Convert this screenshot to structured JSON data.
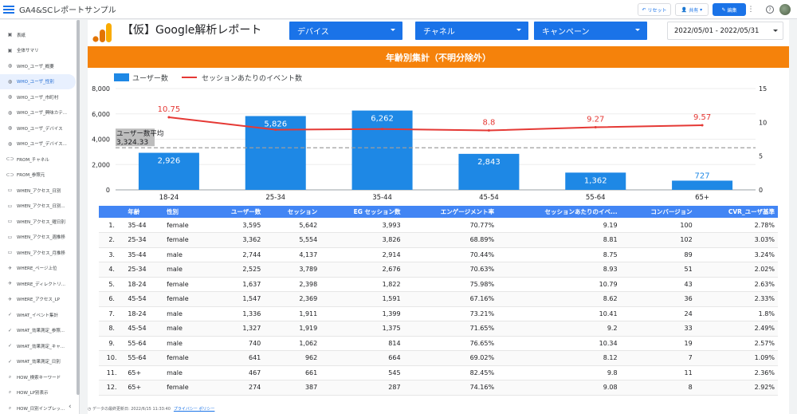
{
  "app": {
    "title": "GA4&SCレポートサンプル",
    "reset_label": "リセット",
    "share_label": "共有",
    "edit_label": "編集",
    "more_label": "⋮",
    "help_label": "?"
  },
  "sidebar": {
    "items": [
      {
        "label": "表紙",
        "icon": "page-icon"
      },
      {
        "label": "全体サマリ",
        "icon": "page-icon"
      },
      {
        "label": "WHO_ユーザ_概要",
        "icon": "globe-icon"
      },
      {
        "label": "WHO_ユーザ_性別",
        "icon": "globe-icon"
      },
      {
        "label": "WHO_ユーザ_市町村",
        "icon": "globe-icon"
      },
      {
        "label": "WHO_ユーザ_興味カテ...",
        "icon": "globe-icon"
      },
      {
        "label": "WHO_ユーザ_デバイス",
        "icon": "globe-icon"
      },
      {
        "label": "WHO_ユーザ_デバイス...",
        "icon": "globe-icon"
      },
      {
        "label": "FROM_チャネル",
        "icon": "link-icon"
      },
      {
        "label": "FROM_参照元",
        "icon": "link-icon"
      },
      {
        "label": "WHEN_アクセス_日別",
        "icon": "truck-icon"
      },
      {
        "label": "WHEN_アクセス_日別...",
        "icon": "truck-icon"
      },
      {
        "label": "WHEN_アクセス_曜日別",
        "icon": "truck-icon"
      },
      {
        "label": "WHEN_アクセス_週推移",
        "icon": "truck-icon"
      },
      {
        "label": "WHEN_アクセス_月推移",
        "icon": "truck-icon"
      },
      {
        "label": "WHERE_ページ上位",
        "icon": "plane-icon"
      },
      {
        "label": "WHERE_ディレクトリ...",
        "icon": "plane-icon"
      },
      {
        "label": "WHERE_アクセス_LP",
        "icon": "plane-icon"
      },
      {
        "label": "WHAT_イベント集計",
        "icon": "check-icon"
      },
      {
        "label": "WHAT_効果測定_参照...",
        "icon": "check-icon"
      },
      {
        "label": "WHAT_効果測定_キャ...",
        "icon": "check-icon"
      },
      {
        "label": "WHAT_効果測定_日別",
        "icon": "check-icon"
      },
      {
        "label": "HOW_検索キーワード",
        "icon": "search-icon"
      },
      {
        "label": "HOW_LP別表示",
        "icon": "search-icon"
      },
      {
        "label": "HOW_日別インプレッ...",
        "icon": "search-icon"
      }
    ],
    "active_index": 3,
    "collapse_label": "‹"
  },
  "header": {
    "report_title": "【仮】Google解析レポート",
    "filters": {
      "device": "デバイス",
      "channel": "チャネル",
      "campaign": "キャンペーン"
    },
    "date_range": "2022/05/01 - 2022/05/31"
  },
  "section": {
    "title": "年齢別集計（不明分除外）"
  },
  "chart_data": {
    "type": "bar+line",
    "categories": [
      "18-24",
      "25-34",
      "35-44",
      "45-54",
      "55-64",
      "65+"
    ],
    "series": [
      {
        "name": "ユーザー数",
        "kind": "bar",
        "axis": "left",
        "color": "#1e88e5",
        "values": [
          2926,
          5826,
          6262,
          2843,
          1362,
          727
        ],
        "labels": [
          "2,926",
          "5,826",
          "6,262",
          "2,843",
          "1,362",
          "727"
        ]
      },
      {
        "name": "セッションあたりのイベント数",
        "kind": "line",
        "axis": "right",
        "color": "#e53935",
        "values": [
          10.75,
          8.9,
          9.0,
          8.8,
          9.27,
          9.57
        ],
        "labels": [
          "10.75",
          "",
          "",
          "8.8",
          "9.27",
          "9.57"
        ]
      }
    ],
    "y_left": {
      "min": 0,
      "max": 8000,
      "ticks": [
        "0",
        "2,000",
        "4,000",
        "6,000",
        "8,000"
      ]
    },
    "y_right": {
      "min": 0,
      "max": 15,
      "ticks": [
        "0",
        "5",
        "10",
        "15"
      ]
    },
    "reference_line": {
      "label": "ユーザー数平均",
      "value": 3324.33,
      "value_label": "3,324.33"
    },
    "legend_position": "top-left"
  },
  "table": {
    "headers": [
      "",
      "年齢",
      "性別",
      "ユーザー数",
      "セッション",
      "EG セッション数",
      "エンゲージメント率",
      "セッションあたりのイベ...",
      "コンバージョン",
      "CVR_ユーザ基準"
    ],
    "rows": [
      [
        "1.",
        "35-44",
        "female",
        "3,595",
        "5,642",
        "3,993",
        "70.77%",
        "9.19",
        "100",
        "2.78%"
      ],
      [
        "2.",
        "25-34",
        "female",
        "3,362",
        "5,554",
        "3,826",
        "68.89%",
        "8.81",
        "102",
        "3.03%"
      ],
      [
        "3.",
        "35-44",
        "male",
        "2,744",
        "4,137",
        "2,914",
        "70.44%",
        "8.75",
        "89",
        "3.24%"
      ],
      [
        "4.",
        "25-34",
        "male",
        "2,525",
        "3,789",
        "2,676",
        "70.63%",
        "8.93",
        "51",
        "2.02%"
      ],
      [
        "5.",
        "18-24",
        "female",
        "1,637",
        "2,398",
        "1,822",
        "75.98%",
        "10.79",
        "43",
        "2.63%"
      ],
      [
        "6.",
        "45-54",
        "female",
        "1,547",
        "2,369",
        "1,591",
        "67.16%",
        "8.62",
        "36",
        "2.33%"
      ],
      [
        "7.",
        "18-24",
        "male",
        "1,336",
        "1,911",
        "1,399",
        "73.21%",
        "10.41",
        "24",
        "1.8%"
      ],
      [
        "8.",
        "45-54",
        "male",
        "1,327",
        "1,919",
        "1,375",
        "71.65%",
        "9.2",
        "33",
        "2.49%"
      ],
      [
        "9.",
        "55-64",
        "male",
        "740",
        "1,062",
        "814",
        "76.65%",
        "10.34",
        "19",
        "2.57%"
      ],
      [
        "10.",
        "55-64",
        "female",
        "641",
        "962",
        "664",
        "69.02%",
        "8.12",
        "7",
        "1.09%"
      ],
      [
        "11.",
        "65+",
        "male",
        "467",
        "661",
        "545",
        "82.45%",
        "9.8",
        "11",
        "2.36%"
      ],
      [
        "12.",
        "65+",
        "female",
        "274",
        "387",
        "287",
        "74.16%",
        "9.08",
        "8",
        "2.92%"
      ]
    ]
  },
  "footer": {
    "updated": "データの最終更新日: 2022/6/15 11:33:40",
    "privacy": "プライバシー ポリシー"
  },
  "colors": {
    "accent": "#1a73e8",
    "section": "#f5820b",
    "bar": "#1e88e5",
    "line": "#e53935",
    "table_header": "#4285f4"
  }
}
